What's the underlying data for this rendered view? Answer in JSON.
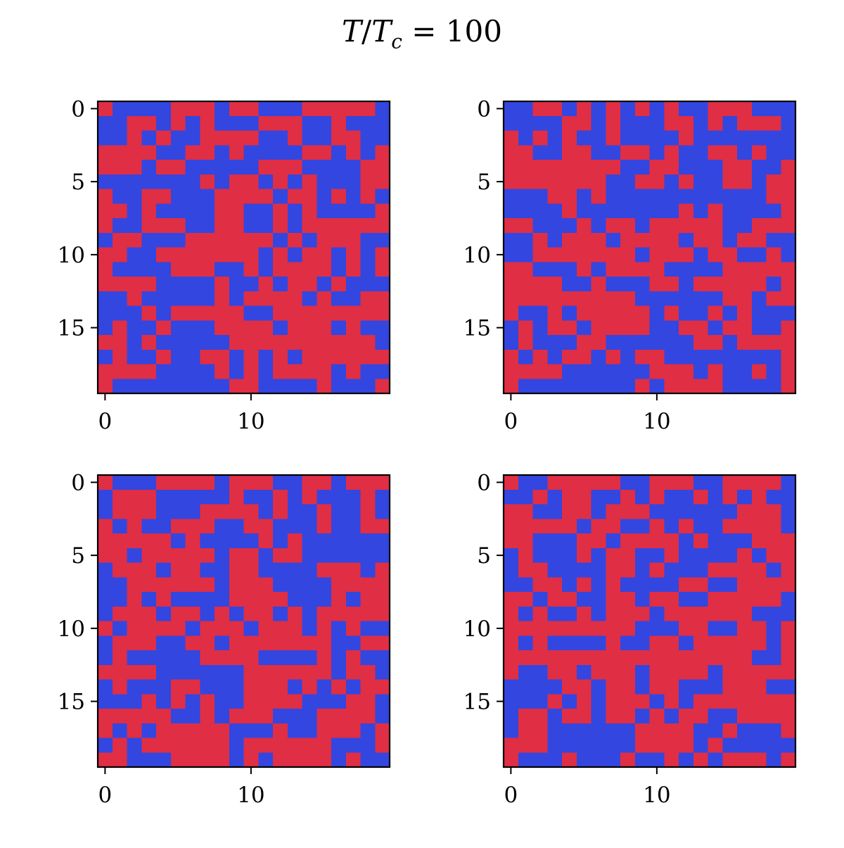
{
  "title": {
    "lhs": "T",
    "slash": "/",
    "sym": "T",
    "sub": "c",
    "eq": " = ",
    "value": "100"
  },
  "colors": {
    "up": "#e02e44",
    "down": "#3346e0",
    "axis": "#000000"
  },
  "chart_data": [
    {
      "type": "heatmap",
      "title": "",
      "xlabel": "",
      "ylabel": "",
      "xlim": [
        -0.5,
        19.5
      ],
      "ylim": [
        19.5,
        -0.5
      ],
      "x_ticks": [
        0,
        10
      ],
      "y_ticks": [
        0,
        5,
        10,
        15
      ],
      "legend": "none",
      "grid": false,
      "rows": [
        "10000111011000111110",
        "00110101000111001000",
        "00101001111001001100",
        "11110011010000110101",
        "11101100000111000011",
        "00000001011010100011",
        "10011000111101101010",
        "11010000110010100001",
        "10011100110010111111",
        "01100011111101011100",
        "11001111111010110101",
        "10000111001011110101",
        "11110000100101101000",
        "00100000101111010011",
        "00010111110011111111",
        "01001000111101110100",
        "11010000011111111110",
        "01001001101010111111",
        "11110000101011110100",
        "10000000011000010001"
      ]
    },
    {
      "type": "heatmap",
      "title": "",
      "xlabel": "",
      "ylabel": "",
      "xlim": [
        -0.5,
        19.5
      ],
      "ylim": [
        19.5,
        -0.5
      ],
      "x_ticks": [
        0,
        10
      ],
      "y_ticks": [
        0,
        5,
        10,
        15
      ],
      "legend": "none",
      "grid": false,
      "rows": [
        "00110101010100111000",
        "00001101000110101110",
        "10101001000010000000",
        "11001100110100110100",
        "11111111001100011001",
        "11111110011010011011",
        "00011010000000000011",
        "00001000000010100001",
        "11000101101111100111",
        "00101110111101101100",
        "00111111101110110010",
        "11000101111000011111",
        "11110010001101111101",
        "11111111100000011011",
        "10010111110100101000",
        "01011011110011011001",
        "01000110000001101111",
        "10101101011000000001",
        "11110000001110100101",
        "10000000010111100001"
      ]
    },
    {
      "type": "heatmap",
      "title": "",
      "xlabel": "",
      "ylabel": "",
      "xlim": [
        -0.5,
        19.5
      ],
      "ylim": [
        19.5,
        -0.5
      ],
      "x_ticks": [
        0,
        10
      ],
      "y_ticks": [
        0,
        5,
        10,
        15
      ],
      "legend": "none",
      "grid": false,
      "rows": [
        "10001111011100110111",
        "01110000010010100010",
        "01110001111010010010",
        "10100111001100010011",
        "11111010000101000000",
        "11011111011011000000",
        "01110110011000011101",
        "00111111011100001111",
        "00101000011110001011",
        "01110110101101011111",
        "10111101110111010100",
        "01110011011111110011",
        "01000001111000010100",
        "11110000001111110110",
        "01000110001110101011",
        "00010101001111000110",
        "11111001011100011110",
        "10101111100010011101",
        "01011111101111110001",
        "11000111101011110100"
      ]
    },
    {
      "type": "heatmap",
      "title": "",
      "xlabel": "",
      "ylabel": "",
      "xlim": [
        -0.5,
        19.5
      ],
      "ylim": [
        19.5,
        -0.5
      ],
      "x_ticks": [
        0,
        10
      ],
      "y_ticks": [
        0,
        5,
        10,
        15
      ],
      "legend": "none",
      "grid": false,
      "rows": [
        "10011111001110011110",
        "00101100101001010100",
        "11001101110000001110",
        "11111011001010011110",
        "11000110111101000111",
        "01000101100100001011",
        "01100001101000111101",
        "00110101000011001111",
        "11011001101100111110",
        "10100101110111111000",
        "11111111100011001101",
        "10100001001101111101",
        "11111111111111111001",
        "10011011101111011111",
        "00001101101100011100",
        "00010101110101111111",
        "01101101101011001111",
        "01100000011110010001",
        "11100000011110100000",
        "10001000100101011101"
      ]
    }
  ]
}
